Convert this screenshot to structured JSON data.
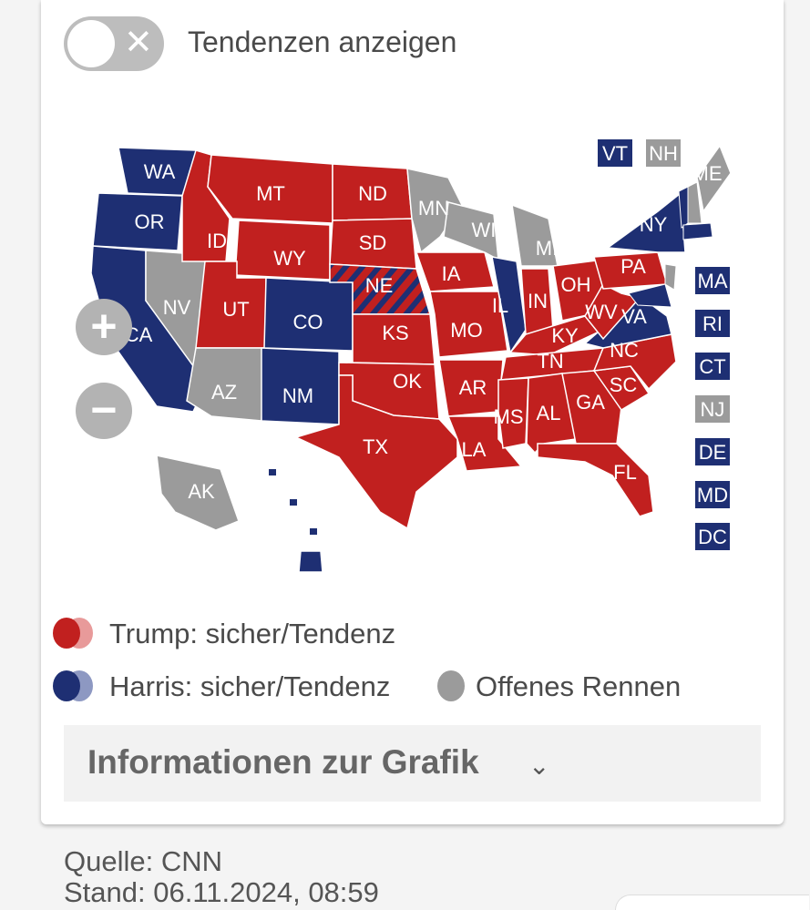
{
  "toggle": {
    "label": "Tendenzen anzeigen",
    "state": "off",
    "icon": "close-icon"
  },
  "colors": {
    "trump": "#c1201f",
    "trump_tendency": "#e89a9a",
    "harris": "#1e2f73",
    "harris_tendency": "#8d98c2",
    "open": "#9b9b9b",
    "stripe_red": "#c1201f",
    "stripe_blue": "#1e2f73"
  },
  "zoom": {
    "in_label": "+",
    "out_label": "−"
  },
  "states": [
    {
      "id": "WA",
      "status": "harris"
    },
    {
      "id": "OR",
      "status": "harris"
    },
    {
      "id": "CA",
      "status": "harris"
    },
    {
      "id": "NV",
      "status": "open"
    },
    {
      "id": "ID",
      "status": "trump"
    },
    {
      "id": "MT",
      "status": "trump"
    },
    {
      "id": "WY",
      "status": "trump"
    },
    {
      "id": "UT",
      "status": "trump"
    },
    {
      "id": "AZ",
      "status": "open"
    },
    {
      "id": "CO",
      "status": "harris"
    },
    {
      "id": "NM",
      "status": "harris"
    },
    {
      "id": "ND",
      "status": "trump"
    },
    {
      "id": "SD",
      "status": "trump"
    },
    {
      "id": "NE",
      "status": "split"
    },
    {
      "id": "KS",
      "status": "trump"
    },
    {
      "id": "OK",
      "status": "trump"
    },
    {
      "id": "TX",
      "status": "trump"
    },
    {
      "id": "MN",
      "status": "open"
    },
    {
      "id": "IA",
      "status": "trump"
    },
    {
      "id": "WI",
      "status": "open"
    },
    {
      "id": "MO",
      "status": "trump"
    },
    {
      "id": "AR",
      "status": "trump"
    },
    {
      "id": "LA",
      "status": "trump"
    },
    {
      "id": "IL",
      "status": "harris"
    },
    {
      "id": "MI",
      "status": "open"
    },
    {
      "id": "IN",
      "status": "trump"
    },
    {
      "id": "OH",
      "status": "trump"
    },
    {
      "id": "KY",
      "status": "trump"
    },
    {
      "id": "TN",
      "status": "trump"
    },
    {
      "id": "MS",
      "status": "trump"
    },
    {
      "id": "AL",
      "status": "trump"
    },
    {
      "id": "GA",
      "status": "trump"
    },
    {
      "id": "FL",
      "status": "trump"
    },
    {
      "id": "SC",
      "status": "trump"
    },
    {
      "id": "NC",
      "status": "trump"
    },
    {
      "id": "VA",
      "status": "harris"
    },
    {
      "id": "WV",
      "status": "trump"
    },
    {
      "id": "PA",
      "status": "trump"
    },
    {
      "id": "NY",
      "status": "harris"
    },
    {
      "id": "ME",
      "status": "open"
    },
    {
      "id": "AK",
      "status": "open"
    },
    {
      "id": "HI",
      "status": "harris"
    }
  ],
  "small_states": [
    {
      "id": "VT",
      "status": "harris"
    },
    {
      "id": "NH",
      "status": "open"
    },
    {
      "id": "MA",
      "status": "harris"
    },
    {
      "id": "RI",
      "status": "harris"
    },
    {
      "id": "CT",
      "status": "harris"
    },
    {
      "id": "NJ",
      "status": "open"
    },
    {
      "id": "DE",
      "status": "harris"
    },
    {
      "id": "MD",
      "status": "harris"
    },
    {
      "id": "DC",
      "status": "harris"
    }
  ],
  "legend": {
    "trump": "Trump: sicher/Tendenz",
    "harris": "Harris: sicher/Tendenz",
    "open": "Offenes Rennen"
  },
  "info": {
    "title": "Informationen zur Grafik",
    "icon": "chevron-down-icon"
  },
  "footer": {
    "source": "Quelle: CNN",
    "date": "Stand: 06.11.2024, 08:59"
  }
}
